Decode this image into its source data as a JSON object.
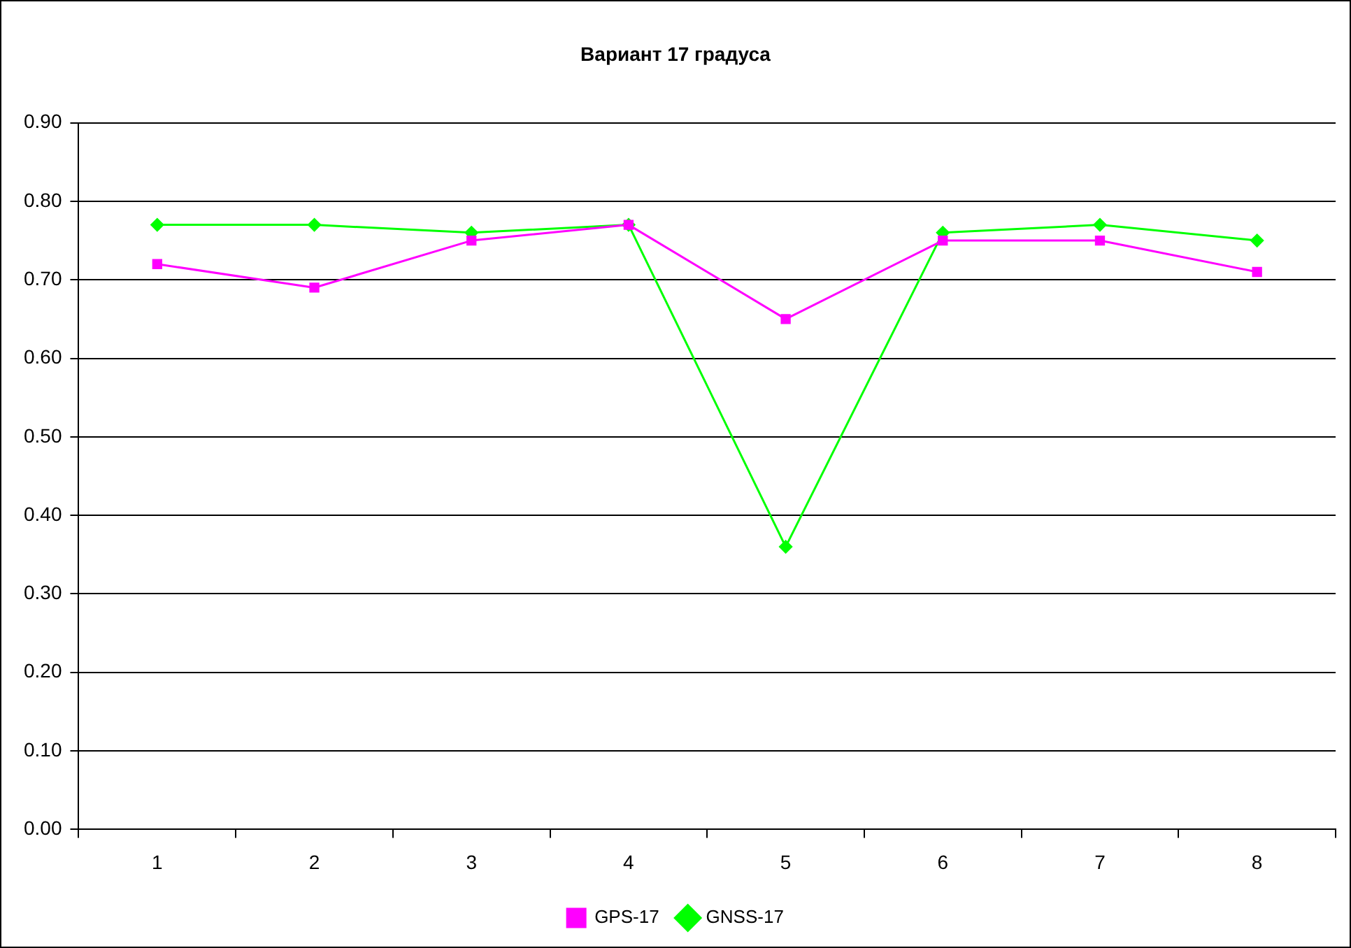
{
  "chart_data": {
    "type": "line",
    "title": "Вариант 17 градуса",
    "categories": [
      "1",
      "2",
      "3",
      "4",
      "5",
      "6",
      "7",
      "8"
    ],
    "series": [
      {
        "name": "GNSS-17",
        "color": "#00ff00",
        "marker": "diamond",
        "values": [
          0.77,
          0.77,
          0.76,
          0.77,
          0.36,
          0.76,
          0.77,
          0.75
        ]
      },
      {
        "name": "GPS-17",
        "color": "#ff00ff",
        "marker": "square",
        "values": [
          0.72,
          0.69,
          0.75,
          0.77,
          0.65,
          0.75,
          0.75,
          0.71
        ]
      }
    ],
    "ylim": [
      0,
      0.9
    ],
    "yticks": [
      {
        "value": 0,
        "label": "0.00"
      },
      {
        "value": 0.1,
        "label": "0.10"
      },
      {
        "value": 0.2,
        "label": "0.20"
      },
      {
        "value": 0.3,
        "label": "0.30"
      },
      {
        "value": 0.4,
        "label": "0.40"
      },
      {
        "value": 0.5,
        "label": "0.50"
      },
      {
        "value": 0.6,
        "label": "0.60"
      },
      {
        "value": 0.7,
        "label": "0.70"
      },
      {
        "value": 0.8,
        "label": "0.80"
      },
      {
        "value": 0.9,
        "label": "0.90"
      }
    ],
    "grid": "y",
    "legend": "bottom",
    "line_style": "solid"
  }
}
